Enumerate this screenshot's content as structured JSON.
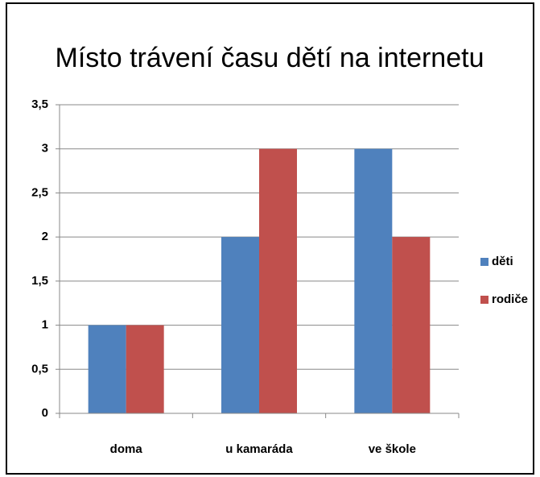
{
  "chart_data": {
    "type": "bar",
    "title": "Místo trávení času dětí na internetu",
    "categories": [
      "doma",
      "u kamaráda",
      "ve škole"
    ],
    "series": [
      {
        "name": "děti",
        "color": "#4f81bd",
        "values": [
          1,
          2,
          3
        ]
      },
      {
        "name": "rodiče",
        "color": "#c0504d",
        "values": [
          1,
          3,
          2
        ]
      }
    ],
    "ylim": [
      0,
      3.5
    ],
    "yticks": [
      0,
      {
        "value": 0.5,
        "label": "0,5"
      },
      1,
      {
        "value": 1.5,
        "label": "1,5"
      },
      2,
      {
        "value": 2.5,
        "label": "2,5"
      },
      3,
      {
        "value": 3.5,
        "label": "3,5"
      }
    ],
    "grid": true,
    "legend": "right"
  }
}
